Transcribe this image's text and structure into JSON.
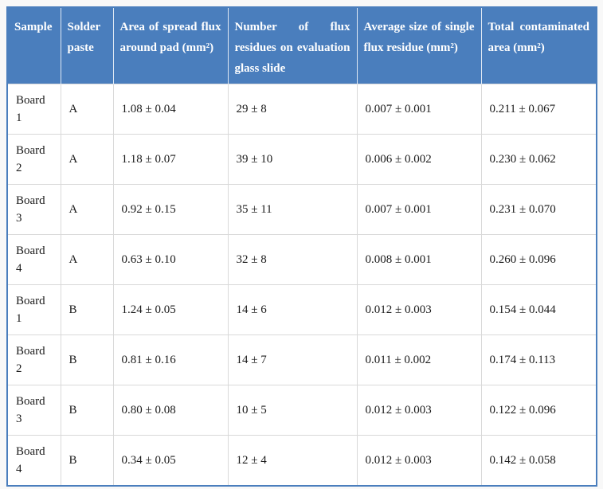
{
  "colors": {
    "page_bg": "#f8f8f8",
    "header_bg": "#4a7ebd",
    "header_text": "#ffffff",
    "outer_border": "#4a7ebd",
    "grid_line": "#d9d9d9",
    "body_text": "#1b1b1b"
  },
  "table": {
    "headers": [
      "Sample",
      "Solder paste",
      "Area of spread flux around pad (mm²)",
      "Number of flux residues on evaluation glass slide",
      "Average size of single flux residue (mm²)",
      "Total contaminated area (mm²)"
    ],
    "rows": [
      [
        "Board 1",
        "A",
        "1.08 ± 0.04",
        "29 ± 8",
        "0.007 ± 0.001",
        "0.211 ± 0.067"
      ],
      [
        "Board 2",
        "A",
        "1.18 ± 0.07",
        "39 ± 10",
        "0.006 ± 0.002",
        "0.230 ± 0.062"
      ],
      [
        "Board 3",
        "A",
        "0.92 ± 0.15",
        "35 ± 11",
        "0.007 ± 0.001",
        "0.231 ± 0.070"
      ],
      [
        "Board 4",
        "A",
        "0.63 ± 0.10",
        "32 ± 8",
        "0.008 ± 0.001",
        "0.260 ± 0.096"
      ],
      [
        "Board 1",
        "B",
        "1.24 ± 0.05",
        "14 ± 6",
        "0.012 ± 0.003",
        "0.154 ± 0.044"
      ],
      [
        "Board 2",
        "B",
        "0.81 ± 0.16",
        "14 ± 7",
        "0.011 ± 0.002",
        "0.174 ± 0.113"
      ],
      [
        "Board 3",
        "B",
        "0.80 ± 0.08",
        "10 ± 5",
        "0.012 ± 0.003",
        "0.122 ± 0.096"
      ],
      [
        "Board 4",
        "B",
        "0.34 ± 0.05",
        "12 ± 4",
        "0.012 ± 0.003",
        "0.142 ± 0.058"
      ]
    ]
  }
}
